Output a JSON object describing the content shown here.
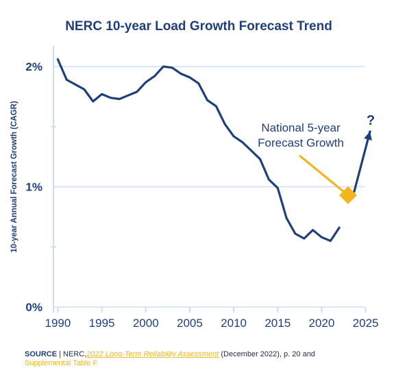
{
  "chart_data": {
    "type": "line",
    "title": "NERC 10-year Load Growth Forecast Trend",
    "ylabel": "10-year Annual Forecast Growth (CAGR)",
    "xlabel": "",
    "xlim": [
      1989.5,
      2025.5
    ],
    "ylim": [
      0,
      2.2
    ],
    "x_ticks": [
      1990,
      1995,
      2000,
      2005,
      2010,
      2015,
      2020,
      2025
    ],
    "y_ticks": [
      {
        "value": 0,
        "label": "0%"
      },
      {
        "value": 1,
        "label": "1%"
      },
      {
        "value": 2,
        "label": "2%"
      }
    ],
    "grid": "horizontal",
    "series": [
      {
        "x": [
          1990,
          1991,
          1992,
          1993,
          1994,
          1995,
          1996,
          1997,
          1998,
          1999,
          2000,
          2001,
          2002,
          2003,
          2004,
          2005,
          2006,
          2007,
          2008,
          2009,
          2010,
          2011,
          2012,
          2013,
          2014,
          2015,
          2016,
          2017,
          2018,
          2019,
          2020,
          2021,
          2022
        ],
        "y": [
          2.06,
          1.89,
          1.85,
          1.81,
          1.71,
          1.77,
          1.74,
          1.73,
          1.76,
          1.79,
          1.87,
          1.92,
          2.0,
          1.99,
          1.94,
          1.91,
          1.86,
          1.72,
          1.67,
          1.52,
          1.42,
          1.37,
          1.3,
          1.23,
          1.06,
          0.99,
          0.74,
          0.61,
          0.57,
          0.64,
          0.58,
          0.55,
          0.66
        ],
        "color": "#1f3f7a"
      }
    ],
    "projection": {
      "x": [
        2023.7,
        2025.5
      ],
      "y": [
        0.96,
        1.46
      ],
      "label": "?",
      "color": "#1f3f7a"
    },
    "marker": {
      "x": 2023,
      "y": 0.93,
      "label": "National 5-year\nForecast Growth",
      "color": "#f2b51c"
    },
    "colors": {
      "line": "#1f3f7a",
      "grid": "#d7e6f8",
      "axis": "#c9ddf3",
      "accent": "#f2b51c"
    }
  },
  "source": {
    "label": "SOURCE",
    "separator": "|",
    "org": "NERC,",
    "link_text": "2022 Long-Term Reliability Assessment",
    "detail": "(December 2022), p. 20 and",
    "continued": "Supplemental Table F"
  }
}
